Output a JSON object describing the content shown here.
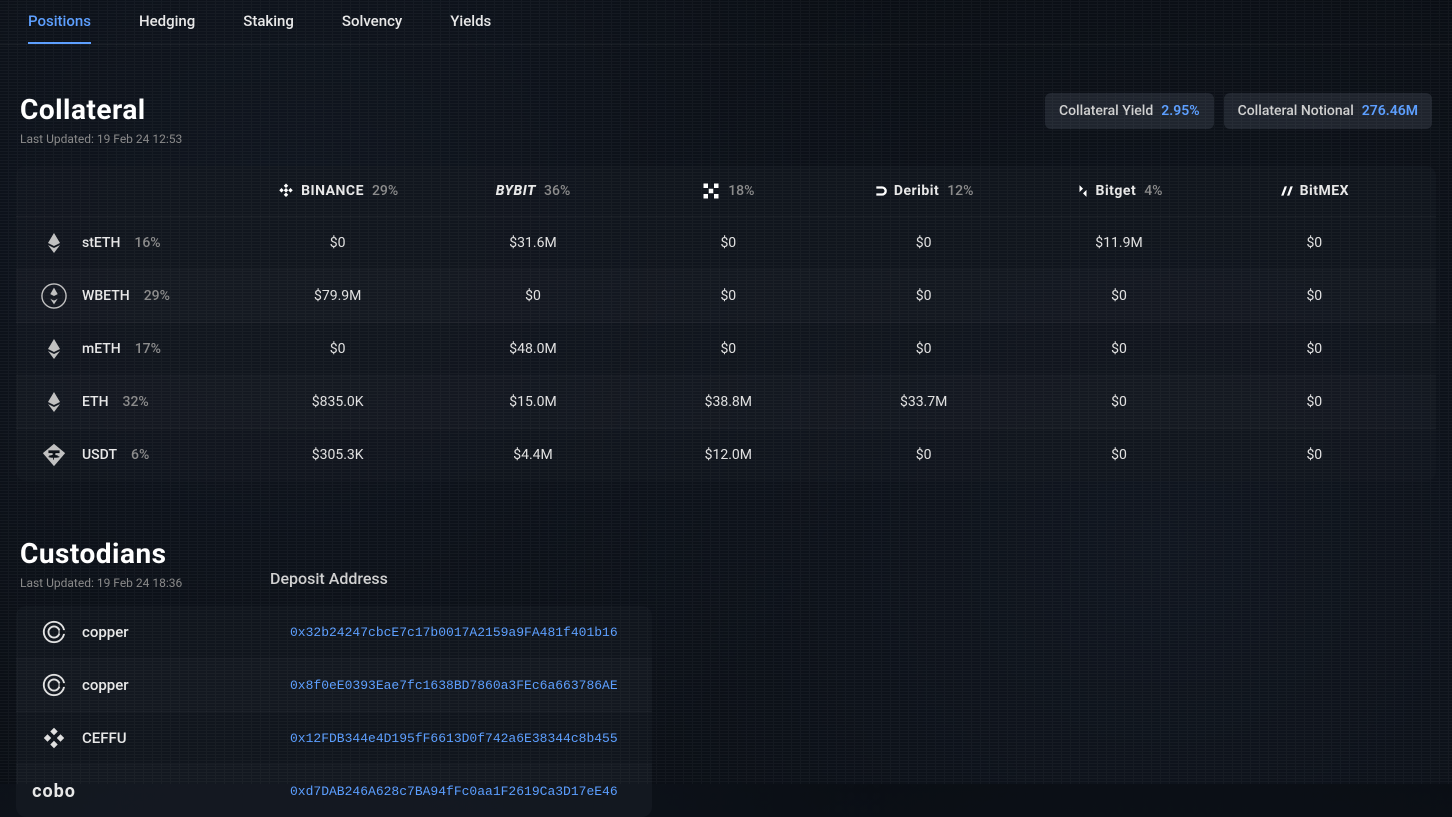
{
  "tabs": [
    "Positions",
    "Hedging",
    "Staking",
    "Solvency",
    "Yields"
  ],
  "active_tab": 0,
  "collateral": {
    "title": "Collateral",
    "updated": "Last Updated: 19 Feb 24 12:53",
    "pills": [
      {
        "label": "Collateral Yield",
        "value": "2.95%"
      },
      {
        "label": "Collateral Notional",
        "value": "276.46M"
      }
    ],
    "exchanges": [
      {
        "name": "BINANCE",
        "pct": "29%"
      },
      {
        "name": "BYBIT",
        "pct": "36%"
      },
      {
        "name": "OKX",
        "pct": "18%"
      },
      {
        "name": "Deribit",
        "pct": "12%"
      },
      {
        "name": "Bitget",
        "pct": "4%"
      },
      {
        "name": "BitMEX",
        "pct": ""
      }
    ],
    "rows": [
      {
        "token": "stETH",
        "pct": "16%",
        "cells": [
          "$0",
          "$31.6M",
          "$0",
          "$0",
          "$11.9M",
          "$0"
        ]
      },
      {
        "token": "WBETH",
        "pct": "29%",
        "cells": [
          "$79.9M",
          "$0",
          "$0",
          "$0",
          "$0",
          "$0"
        ]
      },
      {
        "token": "mETH",
        "pct": "17%",
        "cells": [
          "$0",
          "$48.0M",
          "$0",
          "$0",
          "$0",
          "$0"
        ]
      },
      {
        "token": "ETH",
        "pct": "32%",
        "cells": [
          "$835.0K",
          "$15.0M",
          "$38.8M",
          "$33.7M",
          "$0",
          "$0"
        ]
      },
      {
        "token": "USDT",
        "pct": "6%",
        "cells": [
          "$305.3K",
          "$4.4M",
          "$12.0M",
          "$0",
          "$0",
          "$0"
        ]
      }
    ]
  },
  "custodians": {
    "title": "Custodians",
    "updated": "Last Updated: 19 Feb 24 18:36",
    "deposit_header": "Deposit Address",
    "rows": [
      {
        "name": "copper",
        "address": "0x32b24247cbcE7c17b0017A2159a9FA481f401b16"
      },
      {
        "name": "copper",
        "address": "0x8f0eE0393Eae7fc1638BD7860a3FEc6a663786AE"
      },
      {
        "name": "CEFFU",
        "address": "0x12FDB344e4D195fF6613D0f742a6E38344c8b455"
      },
      {
        "name": "cobo",
        "address": "0xd7DAB246A628c7BA94fFc0aa1F2619Ca3D17eE46"
      }
    ]
  },
  "colors": {
    "accent": "#5b9eff",
    "bg": "#0a0e14",
    "panel": "rgba(18,22,30,0.85)",
    "text": "#e8e8e8",
    "muted": "#8a8a8a"
  }
}
